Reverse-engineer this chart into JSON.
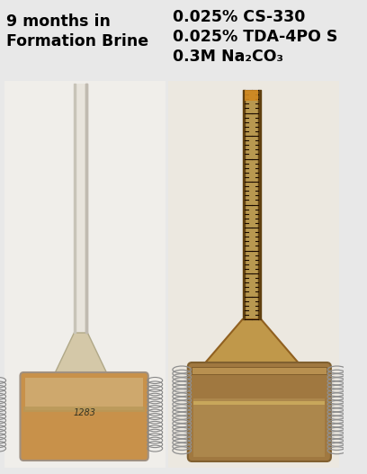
{
  "figsize": [
    4.08,
    5.27
  ],
  "dpi": 100,
  "bg_color": "#e8e8e8",
  "title_left": "9 months in\nFormation Brine",
  "title_right": "0.025% CS-330\n0.025% TDA-4PO S\n0.3M Na₂CO₃",
  "title_fontsize": 12.5,
  "title_fontweight": "bold",
  "left_panel_bg": "#dde8ee",
  "right_panel_bg": "#e8e0d0",
  "core_brown": "#c8914a",
  "core_dark": "#a07030",
  "gold": "#c8a050",
  "tube_left_color": "#ddd8c8",
  "tube_right_color": "#b89050",
  "spring_color": "#b0b0b0",
  "spring_edge": "#888888",
  "neck_color": "#c09040",
  "container_right_top": "#b89060"
}
